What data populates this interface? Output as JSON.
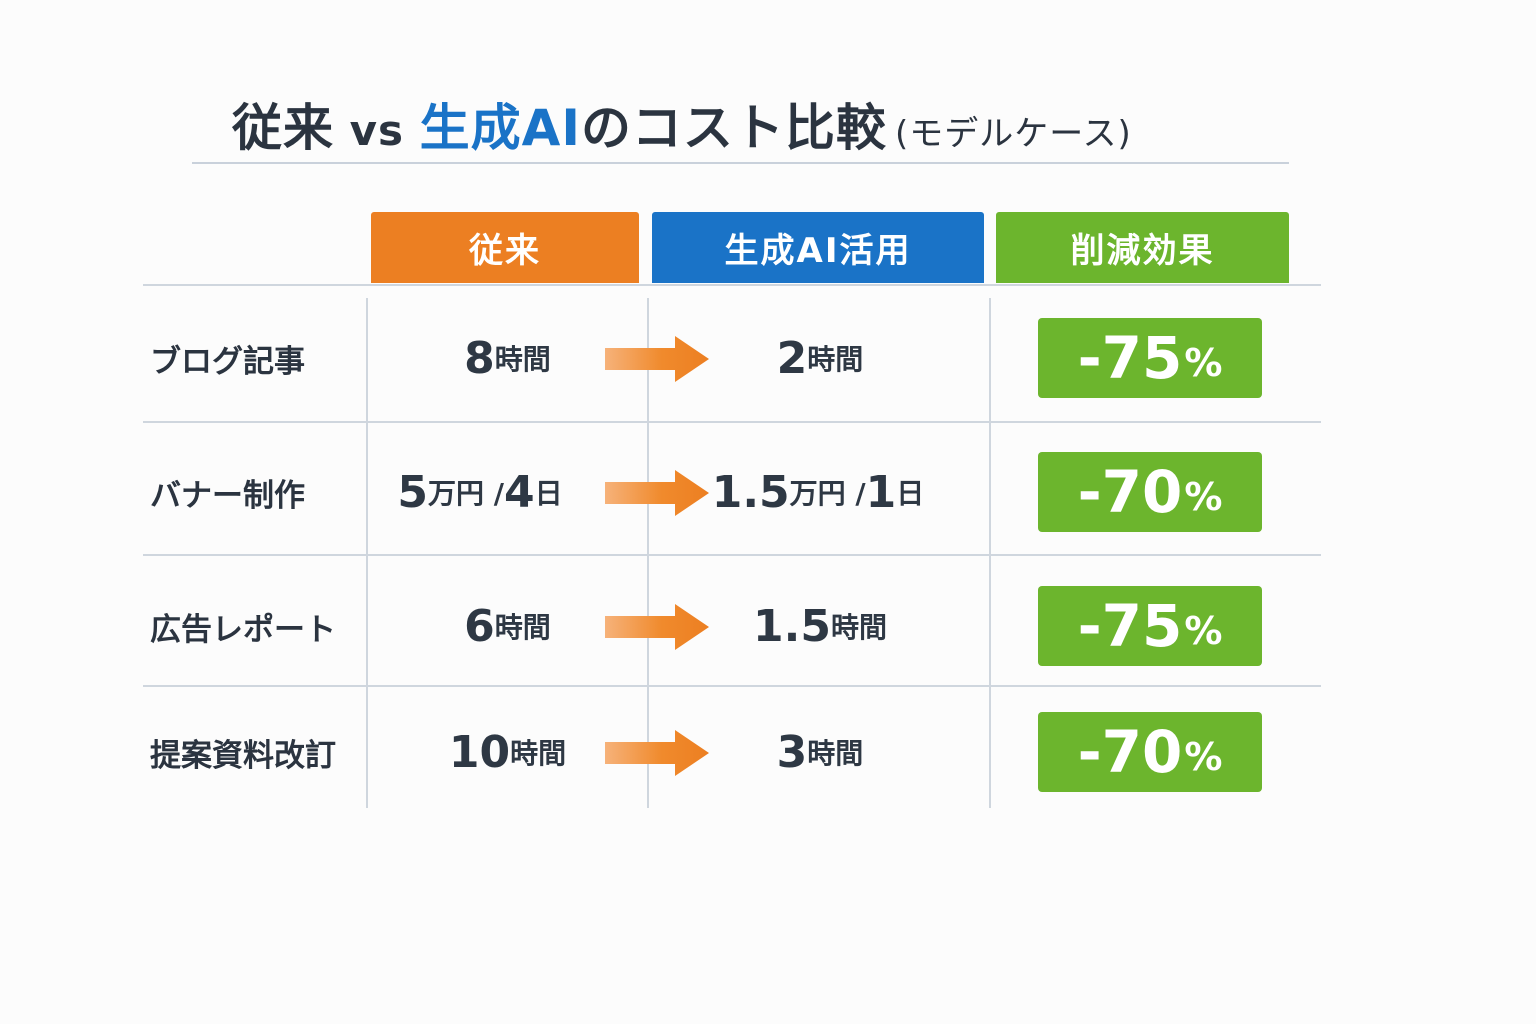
{
  "title": {
    "part1": "従来",
    "part2": " vs ",
    "part3": "生成AI",
    "part4": "のコスト比較",
    "subtitle": "(モデルケース)"
  },
  "headers": {
    "old": "従来",
    "ai": "生成AI活用",
    "reduction": "削減効果"
  },
  "colors": {
    "old": "#ec7f22",
    "ai": "#1a73c7",
    "reduction": "#6cb52d",
    "arrow": "#f08a2c"
  },
  "rows": [
    {
      "task": "ブログ記事",
      "old_num": "8",
      "old_unit": "時間",
      "ai_num": "2",
      "ai_unit": "時間",
      "reduction_num": "-75",
      "reduction_unit": "%"
    },
    {
      "task": "バナー制作",
      "old_num": "5",
      "old_unit": "万円 / ",
      "old_num2": "4",
      "old_unit2": "日",
      "ai_num": "1.5",
      "ai_unit": "万円 / ",
      "ai_num2": "1",
      "ai_unit2": "日",
      "reduction_num": "-70",
      "reduction_unit": "%"
    },
    {
      "task": "広告レポート",
      "old_num": "6",
      "old_unit": "時間",
      "ai_num": "1.5",
      "ai_unit": "時間",
      "reduction_num": "-75",
      "reduction_unit": "%"
    },
    {
      "task": "提案資料改訂",
      "old_num": "10",
      "old_unit": "時間",
      "ai_num": "3",
      "ai_unit": "時間",
      "reduction_num": "-70",
      "reduction_unit": "%"
    }
  ],
  "chart_data": {
    "type": "table",
    "title": "従来 vs 生成AIのコスト比較",
    "subtitle": "(モデルケース)",
    "columns": [
      "従来",
      "生成AI活用",
      "削減効果"
    ],
    "categories": [
      "ブログ記事",
      "バナー制作",
      "広告レポート",
      "提案資料改訂"
    ],
    "series": [
      {
        "name": "従来",
        "values": [
          "8時間",
          "5万円 / 4日",
          "6時間",
          "10時間"
        ]
      },
      {
        "name": "生成AI活用",
        "values": [
          "2時間",
          "1.5万円 / 1日",
          "1.5時間",
          "3時間"
        ]
      },
      {
        "name": "削減効果",
        "values": [
          -75,
          -70,
          -75,
          -70
        ]
      }
    ]
  }
}
